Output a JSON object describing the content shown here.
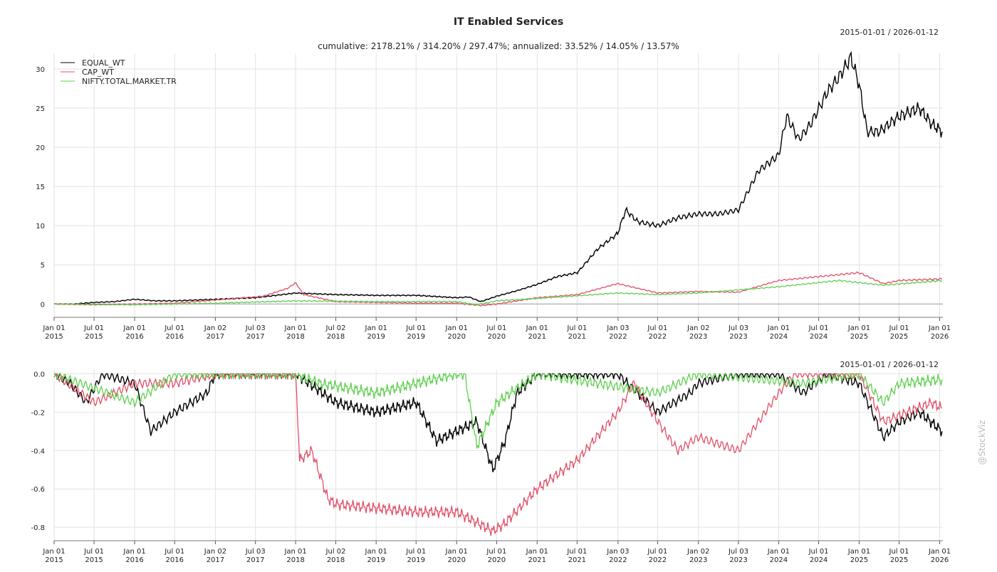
{
  "chart_data": [
    {
      "type": "line",
      "title": "IT Enabled Services",
      "date_range": "2015-01-01 / 2026-01-12",
      "subtitle": "cumulative: 2178.21% / 314.20% / 297.47%; annualized: 33.52% / 14.05% / 13.57%",
      "xlim": [
        2015.0,
        2026.04
      ],
      "ylim": [
        -1.7,
        32
      ],
      "yticks": [
        0,
        5,
        10,
        15,
        20,
        25,
        30
      ],
      "ytick_labels": [
        "0",
        "5",
        "10",
        "15",
        "20",
        "25",
        "30"
      ],
      "grid": true,
      "legend_position": "top-left",
      "series": [
        {
          "name": "EQUAL_WT",
          "color": "#000000",
          "x": [
            2015.0,
            2015.25,
            2015.5,
            2015.75,
            2016.0,
            2016.25,
            2016.5,
            2016.75,
            2017.0,
            2017.5,
            2018.0,
            2018.5,
            2019.0,
            2019.5,
            2020.0,
            2020.15,
            2020.3,
            2020.5,
            2020.75,
            2021.0,
            2021.25,
            2021.5,
            2021.75,
            2022.0,
            2022.1,
            2022.25,
            2022.5,
            2022.75,
            2023.0,
            2023.25,
            2023.5,
            2023.75,
            2024.0,
            2024.1,
            2024.25,
            2024.4,
            2024.6,
            2024.75,
            2024.9,
            2025.0,
            2025.1,
            2025.25,
            2025.5,
            2025.75,
            2025.9,
            2026.03
          ],
          "y": [
            0,
            0,
            0.2,
            0.3,
            0.6,
            0.4,
            0.4,
            0.5,
            0.6,
            0.8,
            1.4,
            1.2,
            1.1,
            1.1,
            0.8,
            0.9,
            0.3,
            1.0,
            1.7,
            2.5,
            3.5,
            4.0,
            7.0,
            9.0,
            12.0,
            10.5,
            10.0,
            11.0,
            11.5,
            11.5,
            12.0,
            17.0,
            19.0,
            24.0,
            21.0,
            23.0,
            27.0,
            29.0,
            31.5,
            28.0,
            22.0,
            22.0,
            24.0,
            25.0,
            23.0,
            22.0
          ]
        },
        {
          "name": "CAP_WT",
          "color": "#e05068",
          "x": [
            2015.0,
            2015.5,
            2016.0,
            2016.5,
            2017.0,
            2017.6,
            2017.9,
            2018.0,
            2018.1,
            2018.5,
            2019.0,
            2019.5,
            2020.0,
            2020.3,
            2020.5,
            2021.0,
            2021.5,
            2022.0,
            2022.5,
            2023.0,
            2023.5,
            2024.0,
            2024.5,
            2025.0,
            2025.3,
            2025.5,
            2026.03
          ],
          "y": [
            0,
            -0.1,
            0,
            0.1,
            0.5,
            1.0,
            2.0,
            2.7,
            1.2,
            0.3,
            0.2,
            0.1,
            0.1,
            -0.2,
            0,
            0.8,
            1.2,
            2.6,
            1.4,
            1.6,
            1.5,
            3.0,
            3.5,
            4.0,
            2.6,
            3.0,
            3.2
          ]
        },
        {
          "name": "NIFTY.TOTAL.MARKET.TR",
          "color": "#5fcf4f",
          "x": [
            2015.0,
            2016.0,
            2017.0,
            2018.0,
            2019.0,
            2020.0,
            2020.25,
            2020.5,
            2021.0,
            2022.0,
            2022.5,
            2023.0,
            2024.0,
            2024.75,
            2025.3,
            2026.03
          ],
          "y": [
            0,
            -0.1,
            0.1,
            0.4,
            0.3,
            0.3,
            -0.1,
            0.4,
            0.7,
            1.4,
            1.2,
            1.4,
            2.2,
            3.0,
            2.4,
            3.0
          ]
        }
      ]
    },
    {
      "type": "line",
      "title": "",
      "date_range": "2015-01-01 / 2026-01-12",
      "xlim": [
        2015.0,
        2026.04
      ],
      "ylim": [
        -0.87,
        0.02
      ],
      "yticks": [
        0,
        -0.2,
        -0.4,
        -0.6,
        -0.8
      ],
      "ytick_labels": [
        "0.0",
        "-0.2",
        "-0.4",
        "-0.6",
        "-0.8"
      ],
      "grid": true,
      "series": [
        {
          "name": "EQUAL_WT",
          "color": "#000000",
          "x": [
            2015.0,
            2015.2,
            2015.4,
            2015.6,
            2016.0,
            2016.2,
            2016.5,
            2016.9,
            2017.0,
            2018.0,
            2018.5,
            2019.0,
            2019.5,
            2019.75,
            2020.0,
            2020.25,
            2020.45,
            2020.6,
            2020.75,
            2021.0,
            2022.0,
            2022.5,
            2022.9,
            2023.0,
            2023.5,
            2024.0,
            2024.3,
            2024.6,
            2025.0,
            2025.3,
            2025.5,
            2025.75,
            2026.03
          ],
          "y": [
            0,
            -0.05,
            -0.15,
            0,
            -0.05,
            -0.3,
            -0.2,
            -0.1,
            0,
            0,
            -0.15,
            -0.2,
            -0.15,
            -0.35,
            -0.3,
            -0.25,
            -0.5,
            -0.35,
            -0.1,
            0,
            0,
            -0.2,
            -0.1,
            -0.05,
            0,
            0,
            -0.1,
            0,
            -0.05,
            -0.33,
            -0.25,
            -0.2,
            -0.3
          ]
        },
        {
          "name": "CAP_WT",
          "color": "#e05068",
          "x": [
            2015.0,
            2015.5,
            2016.0,
            2016.5,
            2017.0,
            2018.0,
            2018.05,
            2018.2,
            2018.4,
            2018.5,
            2019.0,
            2019.5,
            2020.0,
            2020.45,
            2020.6,
            2021.0,
            2021.5,
            2022.0,
            2022.2,
            2022.5,
            2022.75,
            2023.0,
            2023.5,
            2023.75,
            2024.0,
            2024.2,
            2025.0,
            2025.3,
            2025.6,
            2025.9,
            2026.03
          ],
          "y": [
            0,
            -0.15,
            -0.05,
            -0.05,
            0,
            0,
            -0.45,
            -0.4,
            -0.65,
            -0.68,
            -0.7,
            -0.72,
            -0.72,
            -0.82,
            -0.78,
            -0.6,
            -0.45,
            -0.2,
            -0.05,
            -0.25,
            -0.4,
            -0.33,
            -0.4,
            -0.25,
            -0.1,
            0,
            0,
            -0.25,
            -0.2,
            -0.15,
            -0.18
          ]
        },
        {
          "name": "NIFTY.TOTAL.MARKET.TR",
          "color": "#5fcf4f",
          "x": [
            2015.0,
            2016.0,
            2016.5,
            2018.0,
            2018.3,
            2019.0,
            2019.5,
            2020.0,
            2020.1,
            2020.25,
            2020.5,
            2021.0,
            2022.5,
            2023.0,
            2024.3,
            2025.0,
            2025.3,
            2025.5,
            2026.03
          ],
          "y": [
            0,
            -0.15,
            0,
            0,
            -0.05,
            -0.1,
            -0.05,
            0,
            0,
            -0.38,
            -0.15,
            0,
            -0.1,
            0,
            -0.05,
            0,
            -0.15,
            -0.05,
            -0.03
          ]
        }
      ]
    }
  ],
  "xticks": [
    {
      "x": 2015.0,
      "label": "Jan 01",
      "year": "2015"
    },
    {
      "x": 2015.496,
      "label": "Jul 01",
      "year": "2015"
    },
    {
      "x": 2016.0,
      "label": "Jan 01",
      "year": "2016"
    },
    {
      "x": 2016.497,
      "label": "Jul 01",
      "year": "2016"
    },
    {
      "x": 2017.003,
      "label": "Jan 02",
      "year": "2017"
    },
    {
      "x": 2017.501,
      "label": "Jul 03",
      "year": "2017"
    },
    {
      "x": 2018.0,
      "label": "Jan 01",
      "year": "2018"
    },
    {
      "x": 2018.499,
      "label": "Jul 02",
      "year": "2018"
    },
    {
      "x": 2019.0,
      "label": "Jan 01",
      "year": "2019"
    },
    {
      "x": 2019.496,
      "label": "Jul 01",
      "year": "2019"
    },
    {
      "x": 2020.0,
      "label": "Jan 01",
      "year": "2020"
    },
    {
      "x": 2020.497,
      "label": "Jul 01",
      "year": "2020"
    },
    {
      "x": 2021.0,
      "label": "Jan 01",
      "year": "2021"
    },
    {
      "x": 2021.496,
      "label": "Jul 01",
      "year": "2021"
    },
    {
      "x": 2022.005,
      "label": "Jan 03",
      "year": "2022"
    },
    {
      "x": 2022.496,
      "label": "Jul 01",
      "year": "2022"
    },
    {
      "x": 2023.003,
      "label": "Jan 02",
      "year": "2023"
    },
    {
      "x": 2023.501,
      "label": "Jul 03",
      "year": "2023"
    },
    {
      "x": 2024.0,
      "label": "Jan 01",
      "year": "2024"
    },
    {
      "x": 2024.497,
      "label": "Jul 01",
      "year": "2024"
    },
    {
      "x": 2025.0,
      "label": "Jan 01",
      "year": "2025"
    },
    {
      "x": 2025.496,
      "label": "Jul 01",
      "year": "2025"
    },
    {
      "x": 2026.0,
      "label": "Jan 01",
      "year": "2026"
    }
  ],
  "watermark": "@StockViz"
}
